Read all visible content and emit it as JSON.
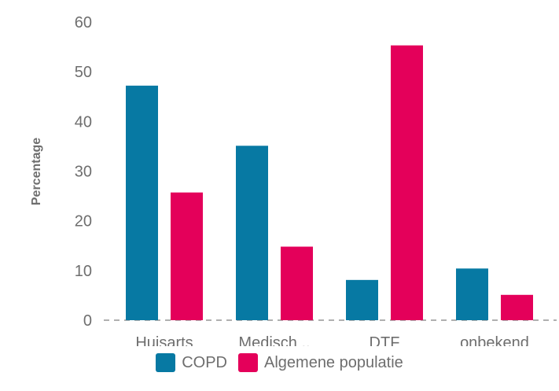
{
  "chart_data": {
    "type": "bar",
    "title": "",
    "xlabel": "",
    "ylabel": "Percentage",
    "ylim": [
      0,
      60
    ],
    "yticks": [
      0,
      10,
      20,
      30,
      40,
      50,
      60
    ],
    "categories": [
      "Huisarts",
      "Medisch ..",
      "DTF",
      "onbekend"
    ],
    "series": [
      {
        "name": "COPD",
        "color": "#0779a3",
        "values": [
          47.2,
          35.1,
          8.1,
          10.4
        ]
      },
      {
        "name": "Algemene populatie",
        "color": "#e4005a",
        "values": [
          25.7,
          14.8,
          55.3,
          5.1
        ]
      }
    ],
    "grid": false,
    "baseline": "dashed",
    "legend": "bottom-center"
  }
}
